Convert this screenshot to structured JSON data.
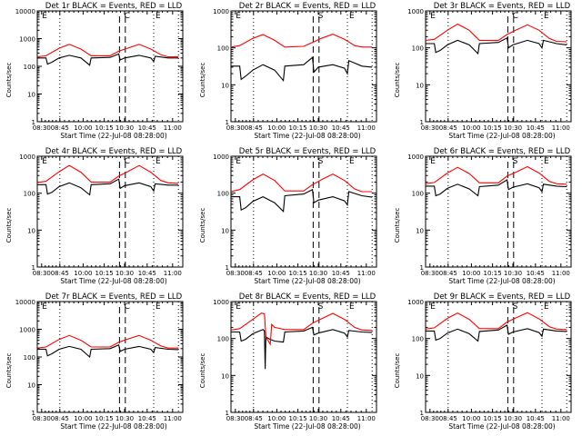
{
  "figure": {
    "xlabel": "Start Time (22-Jul-08 08:28:00)",
    "ylabel": "Counts/sec",
    "colors": {
      "events": "#000000",
      "lld": "#ff0000"
    }
  },
  "chart_data": {
    "type": "line",
    "layout": "3x3 grid of panels",
    "xtick_labels": [
      "08:30",
      "08:45",
      "10:00",
      "10:15",
      "10:30",
      "10:45",
      "11:00"
    ],
    "x_units": "fraction of time axis (0 = 08:28, 1 = ~11:05)",
    "yscale": "log",
    "panels": [
      {
        "title": "Det 1r BLACK = Events, RED = LLD",
        "ylim": [
          1,
          10000
        ],
        "ytick_labels": [
          "1",
          "10",
          "100",
          "1000",
          "10000"
        ],
        "markers": [
          "E",
          "C",
          "E"
        ],
        "series": [
          {
            "name": "Events",
            "color": "#000000",
            "x": [
              0,
              0.06,
              0.07,
              0.1,
              0.15,
              0.22,
              0.3,
              0.36,
              0.37,
              0.5,
              0.56,
              0.57,
              0.6,
              0.7,
              0.78,
              0.8,
              0.81,
              0.9,
              0.97
            ],
            "y": [
              200,
              200,
              120,
              140,
              200,
              250,
              200,
              110,
              200,
              210,
              280,
              170,
              200,
              250,
              200,
              150,
              230,
              200,
              200
            ]
          },
          {
            "name": "LLD",
            "color": "#ff0000",
            "x": [
              0,
              0.06,
              0.15,
              0.22,
              0.3,
              0.37,
              0.5,
              0.56,
              0.62,
              0.7,
              0.78,
              0.85,
              0.9,
              0.97
            ],
            "y": [
              220,
              240,
              450,
              620,
              420,
              240,
              240,
              350,
              450,
              620,
              420,
              260,
              220,
              220
            ]
          }
        ]
      },
      {
        "title": "Det 2r BLACK = Events, RED = LLD",
        "ylim": [
          1,
          1000
        ],
        "ytick_labels": [
          "1",
          "10",
          "100",
          "1000"
        ],
        "markers": [
          "E",
          "S",
          "E"
        ],
        "series": [
          {
            "name": "Events",
            "color": "#000000",
            "x": [
              0,
              0.06,
              0.07,
              0.1,
              0.15,
              0.22,
              0.3,
              0.36,
              0.37,
              0.5,
              0.56,
              0.57,
              0.6,
              0.7,
              0.78,
              0.8,
              0.81,
              0.9,
              0.97
            ],
            "y": [
              32,
              32,
              14,
              17,
              25,
              35,
              25,
              13,
              32,
              35,
              55,
              22,
              30,
              35,
              28,
              20,
              45,
              32,
              30
            ]
          },
          {
            "name": "LLD",
            "color": "#ff0000",
            "x": [
              0,
              0.06,
              0.15,
              0.22,
              0.3,
              0.37,
              0.5,
              0.56,
              0.62,
              0.7,
              0.78,
              0.85,
              0.9,
              0.97
            ],
            "y": [
              105,
              115,
              180,
              230,
              160,
              105,
              110,
              140,
              180,
              235,
              170,
              115,
              105,
              105
            ]
          }
        ]
      },
      {
        "title": "Det 3r BLACK = Events, RED = LLD",
        "ylim": [
          1,
          1000
        ],
        "ytick_labels": [
          "1",
          "10",
          "100",
          "1000"
        ],
        "markers": [
          "E",
          "C",
          "E"
        ],
        "series": [
          {
            "name": "Events",
            "color": "#000000",
            "x": [
              0,
              0.06,
              0.07,
              0.1,
              0.15,
              0.22,
              0.3,
              0.36,
              0.37,
              0.5,
              0.56,
              0.57,
              0.6,
              0.7,
              0.78,
              0.8,
              0.81,
              0.9,
              0.97
            ],
            "y": [
              130,
              130,
              75,
              85,
              120,
              160,
              120,
              70,
              130,
              140,
              185,
              100,
              120,
              160,
              130,
              100,
              160,
              130,
              120
            ]
          },
          {
            "name": "LLD",
            "color": "#ff0000",
            "x": [
              0,
              0.06,
              0.15,
              0.22,
              0.3,
              0.37,
              0.5,
              0.56,
              0.62,
              0.7,
              0.78,
              0.85,
              0.9,
              0.97
            ],
            "y": [
              160,
              170,
              300,
              440,
              300,
              160,
              160,
              230,
              300,
              420,
              300,
              180,
              150,
              145
            ]
          }
        ]
      },
      {
        "title": "Det 4r BLACK = Events, RED = LLD",
        "ylim": [
          1,
          1000
        ],
        "ytick_labels": [
          "1",
          "10",
          "100",
          "1000"
        ],
        "markers": [
          "E",
          "C",
          "E"
        ],
        "series": [
          {
            "name": "Events",
            "color": "#000000",
            "x": [
              0,
              0.06,
              0.07,
              0.1,
              0.15,
              0.22,
              0.3,
              0.36,
              0.37,
              0.5,
              0.56,
              0.57,
              0.6,
              0.7,
              0.78,
              0.8,
              0.81,
              0.9,
              0.97
            ],
            "y": [
              170,
              170,
              95,
              105,
              150,
              190,
              140,
              90,
              170,
              180,
              240,
              135,
              160,
              190,
              150,
              115,
              180,
              165,
              165
            ]
          },
          {
            "name": "LLD",
            "color": "#ff0000",
            "x": [
              0,
              0.06,
              0.15,
              0.22,
              0.3,
              0.37,
              0.5,
              0.56,
              0.62,
              0.7,
              0.78,
              0.85,
              0.9,
              0.97
            ],
            "y": [
              195,
              210,
              380,
              560,
              370,
              200,
              200,
              290,
              380,
              560,
              370,
              220,
              190,
              185
            ]
          }
        ]
      },
      {
        "title": "Det 5r BLACK = Events, RED = LLD",
        "ylim": [
          1,
          1000
        ],
        "ytick_labels": [
          "1",
          "10",
          "100",
          "1000"
        ],
        "markers": [
          "E",
          "S",
          "E"
        ],
        "series": [
          {
            "name": "Events",
            "color": "#000000",
            "x": [
              0,
              0.06,
              0.07,
              0.1,
              0.15,
              0.22,
              0.3,
              0.36,
              0.37,
              0.5,
              0.56,
              0.57,
              0.6,
              0.7,
              0.78,
              0.8,
              0.81,
              0.9,
              0.97
            ],
            "y": [
              80,
              80,
              35,
              40,
              60,
              80,
              55,
              32,
              85,
              95,
              125,
              55,
              65,
              80,
              62,
              48,
              110,
              85,
              78
            ]
          },
          {
            "name": "LLD",
            "color": "#ff0000",
            "x": [
              0,
              0.06,
              0.15,
              0.22,
              0.3,
              0.37,
              0.5,
              0.56,
              0.62,
              0.7,
              0.78,
              0.85,
              0.9,
              0.97
            ],
            "y": [
              110,
              125,
              230,
              330,
              220,
              115,
              115,
              170,
              230,
              330,
              220,
              130,
              110,
              110
            ]
          }
        ]
      },
      {
        "title": "Det 6r BLACK = Events, RED = LLD",
        "ylim": [
          1,
          1000
        ],
        "ytick_labels": [
          "1",
          "10",
          "100",
          "1000"
        ],
        "markers": [
          "E",
          "S",
          "E"
        ],
        "series": [
          {
            "name": "Events",
            "color": "#000000",
            "x": [
              0,
              0.06,
              0.07,
              0.1,
              0.15,
              0.22,
              0.3,
              0.36,
              0.37,
              0.5,
              0.56,
              0.57,
              0.6,
              0.7,
              0.78,
              0.8,
              0.81,
              0.9,
              0.97
            ],
            "y": [
              155,
              155,
              85,
              95,
              135,
              175,
              130,
              85,
              150,
              165,
              230,
              125,
              145,
              180,
              140,
              110,
              175,
              155,
              150
            ]
          },
          {
            "name": "LLD",
            "color": "#ff0000",
            "x": [
              0,
              0.06,
              0.15,
              0.22,
              0.3,
              0.37,
              0.5,
              0.56,
              0.62,
              0.7,
              0.78,
              0.85,
              0.9,
              0.97
            ],
            "y": [
              180,
              195,
              350,
              500,
              340,
              190,
              190,
              290,
              370,
              520,
              350,
              210,
              180,
              175
            ]
          }
        ]
      },
      {
        "title": "Det 7r BLACK = Events, RED = LLD",
        "ylim": [
          1,
          10000
        ],
        "ytick_labels": [
          "1",
          "10",
          "100",
          "1000",
          "10000"
        ],
        "markers": [
          "E",
          "C",
          "E"
        ],
        "series": [
          {
            "name": "Events",
            "color": "#000000",
            "x": [
              0,
              0.06,
              0.07,
              0.1,
              0.15,
              0.22,
              0.3,
              0.36,
              0.37,
              0.5,
              0.56,
              0.57,
              0.6,
              0.7,
              0.78,
              0.8,
              0.81,
              0.9,
              0.97
            ],
            "y": [
              190,
              190,
              110,
              130,
              190,
              240,
              190,
              100,
              190,
              200,
              270,
              160,
              190,
              240,
              190,
              145,
              220,
              190,
              185
            ]
          },
          {
            "name": "LLD",
            "color": "#ff0000",
            "x": [
              0,
              0.06,
              0.15,
              0.22,
              0.3,
              0.37,
              0.5,
              0.56,
              0.62,
              0.7,
              0.78,
              0.85,
              0.9,
              0.97
            ],
            "y": [
              210,
              230,
              430,
              600,
              400,
              230,
              230,
              340,
              440,
              600,
              400,
              250,
              210,
              210
            ]
          }
        ]
      },
      {
        "title": "Det 8r BLACK = Events, RED = LLD",
        "ylim": [
          1,
          1000
        ],
        "ytick_labels": [
          "1",
          "10",
          "100",
          "1000"
        ],
        "markers": [
          "E",
          "S",
          "E"
        ],
        "series": [
          {
            "name": "Events",
            "color": "#000000",
            "x": [
              0,
              0.06,
              0.07,
              0.1,
              0.15,
              0.22,
              0.23,
              0.235,
              0.24,
              0.27,
              0.3,
              0.36,
              0.37,
              0.5,
              0.56,
              0.57,
              0.6,
              0.7,
              0.78,
              0.8,
              0.81,
              0.9,
              0.97
            ],
            "y": [
              150,
              150,
              85,
              95,
              135,
              175,
              160,
              15,
              110,
              95,
              85,
              80,
              150,
              160,
              200,
              125,
              140,
              175,
              140,
              110,
              165,
              150,
              145
            ]
          },
          {
            "name": "LLD",
            "color": "#ff0000",
            "x": [
              0,
              0.06,
              0.15,
              0.21,
              0.23,
              0.24,
              0.27,
              0.28,
              0.3,
              0.37,
              0.5,
              0.56,
              0.62,
              0.7,
              0.78,
              0.85,
              0.9,
              0.97
            ],
            "y": [
              170,
              185,
              330,
              490,
              460,
              110,
              70,
              240,
              200,
              175,
              175,
              260,
              340,
              480,
              330,
              200,
              170,
              165
            ]
          }
        ]
      },
      {
        "title": "Det 9r BLACK = Events, RED = LLD",
        "ylim": [
          1,
          1000
        ],
        "ytick_labels": [
          "1",
          "10",
          "100",
          "1000"
        ],
        "markers": [
          "E",
          "S",
          "E"
        ],
        "series": [
          {
            "name": "Events",
            "color": "#000000",
            "x": [
              0,
              0.06,
              0.07,
              0.1,
              0.15,
              0.22,
              0.3,
              0.36,
              0.37,
              0.5,
              0.56,
              0.57,
              0.6,
              0.7,
              0.78,
              0.8,
              0.81,
              0.9,
              0.97
            ],
            "y": [
              160,
              160,
              90,
              100,
              140,
              180,
              135,
              85,
              155,
              170,
              230,
              130,
              150,
              185,
              145,
              115,
              180,
              160,
              155
            ]
          },
          {
            "name": "LLD",
            "color": "#ff0000",
            "x": [
              0,
              0.06,
              0.15,
              0.22,
              0.3,
              0.37,
              0.5,
              0.56,
              0.62,
              0.7,
              0.78,
              0.85,
              0.9,
              0.97
            ],
            "y": [
              180,
              195,
              350,
              490,
              330,
              185,
              185,
              280,
              360,
              500,
              340,
              210,
              180,
              175
            ]
          }
        ]
      }
    ],
    "vertical_lines": {
      "dotted_fractions": [
        0.155,
        0.8,
        0.97
      ],
      "dashed_fractions": [
        0.565,
        0.605
      ]
    }
  }
}
